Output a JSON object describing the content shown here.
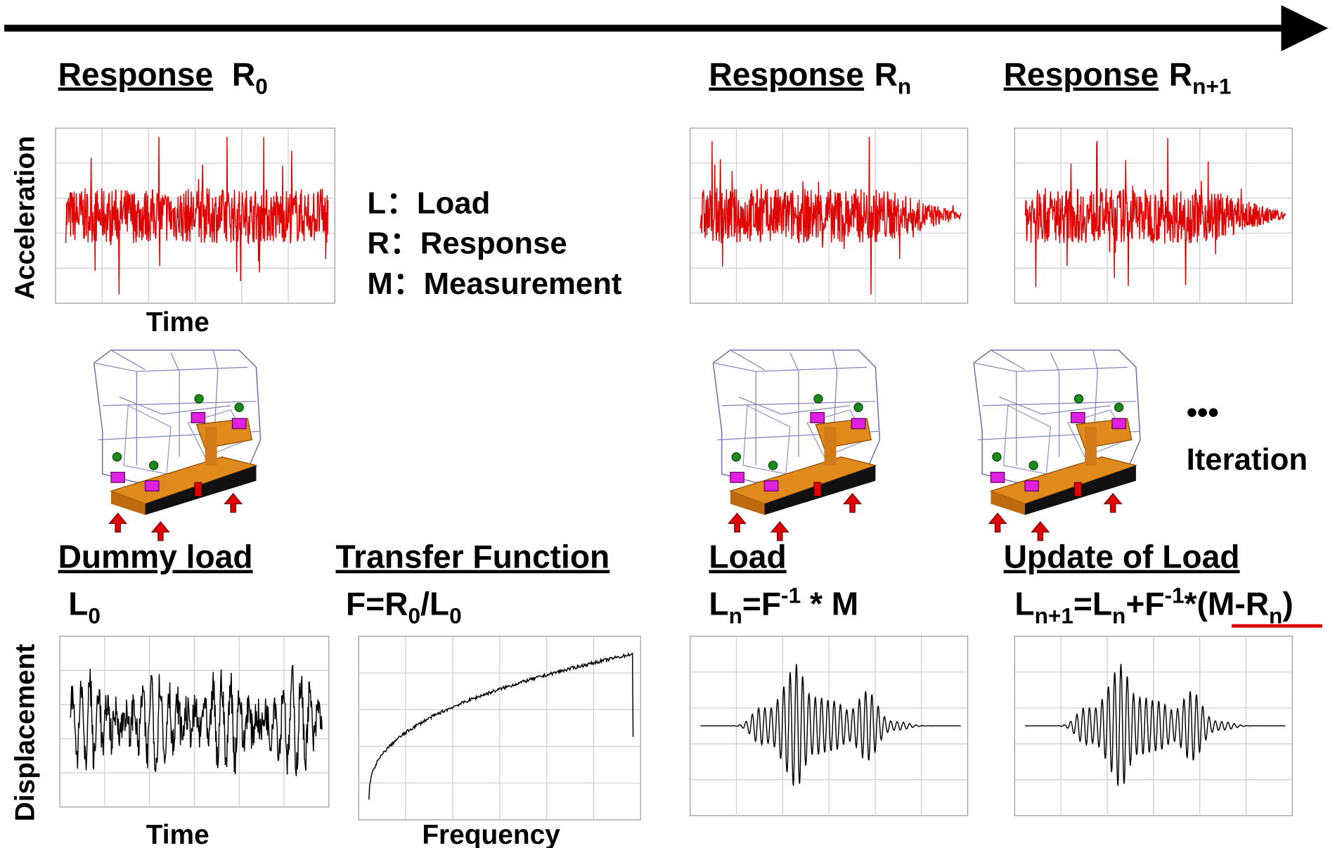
{
  "top_headings": [
    {
      "word": "Response",
      "symbol": "R",
      "sub": "0"
    },
    {
      "word": "Response",
      "symbol": "R",
      "sub": "n"
    },
    {
      "word": "Response",
      "symbol": "R",
      "sub": "n+1"
    }
  ],
  "axis_labels": {
    "acceleration": "Acceleration",
    "displacement": "Displacement",
    "time_top": "Time",
    "time_bottom": "Time",
    "frequency": "Frequency"
  },
  "legend": [
    "L：Load",
    "R：Response",
    "M：Measurement"
  ],
  "iteration": {
    "dots": "•••",
    "label": "Iteration"
  },
  "bottom_headings": [
    "Dummy load",
    "Transfer Function",
    "Load",
    "Update of Load"
  ],
  "formulas": {
    "dummy": [
      "L",
      "0"
    ],
    "transfer": [
      "F=R",
      "0",
      "/L",
      "0"
    ],
    "load": [
      "L",
      "n",
      "=F",
      "-1",
      " * M"
    ],
    "update": [
      "L",
      "n+1",
      "=L",
      "n",
      "+F",
      "-1",
      "*(",
      "M-R",
      "n",
      ")"
    ]
  }
}
